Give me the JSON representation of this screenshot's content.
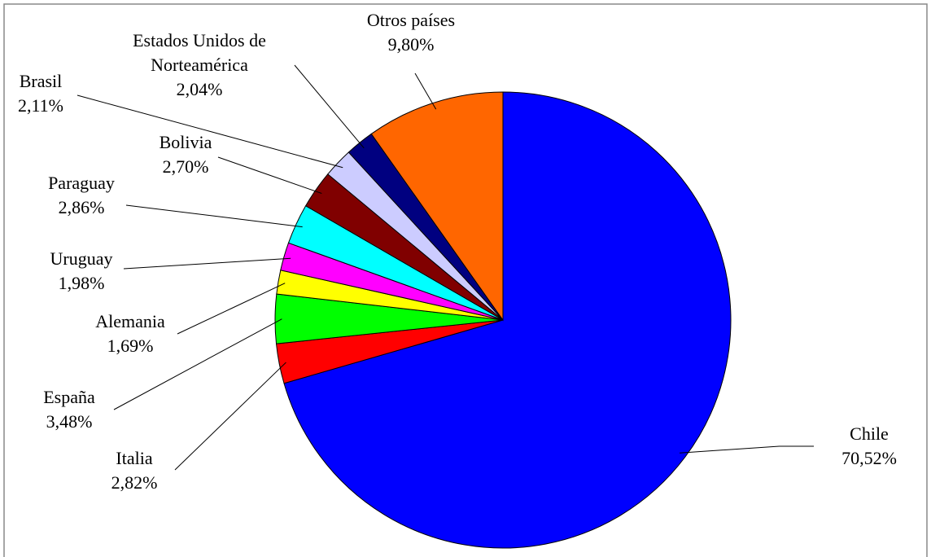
{
  "chart_data": {
    "type": "pie",
    "categories": [
      "Chile",
      "Italia",
      "España",
      "Alemania",
      "Uruguay",
      "Paraguay",
      "Bolivia",
      "Brasil",
      "Estados Unidos de Norteamérica",
      "Otros países"
    ],
    "values": [
      70.52,
      2.82,
      3.48,
      1.69,
      1.98,
      2.86,
      2.7,
      2.11,
      2.04,
      9.8
    ],
    "value_labels": [
      "70,52%",
      "2,82%",
      "3,48%",
      "1,69%",
      "1,98%",
      "2,86%",
      "2,70%",
      "2,11%",
      "2,04%",
      "9,80%"
    ],
    "colors": [
      "#0000ff",
      "#ff0000",
      "#00ff00",
      "#ffff00",
      "#ff00ff",
      "#00ffff",
      "#800000",
      "#ccccff",
      "#000080",
      "#ff6600"
    ]
  }
}
